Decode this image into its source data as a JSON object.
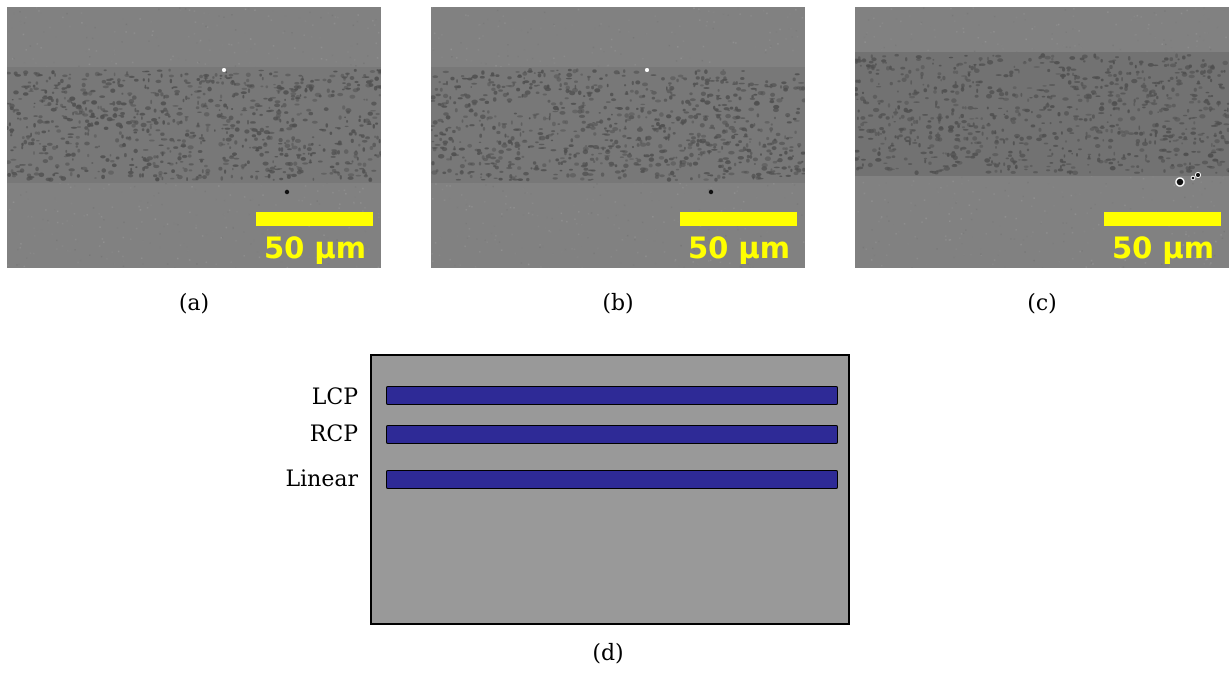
{
  "panels": [
    {
      "caption": "(a)",
      "scale_label": "50 µm",
      "variant": "a"
    },
    {
      "caption": "(b)",
      "scale_label": "50 µm",
      "variant": "b"
    },
    {
      "caption": "(c)",
      "scale_label": "50 µm",
      "variant": "c"
    }
  ],
  "diagram": {
    "caption": "(d)",
    "stripes": [
      {
        "label": "LCP"
      },
      {
        "label": "RCP"
      },
      {
        "label": "Linear"
      }
    ]
  },
  "colors": {
    "sem_background": "#818181",
    "sem_band": "#6c6c6c",
    "sem_dark_spot": "#4f4f4f",
    "scale_bar": "#ffff00",
    "diagram_background": "#999999",
    "stripe": "#2e2a96"
  }
}
